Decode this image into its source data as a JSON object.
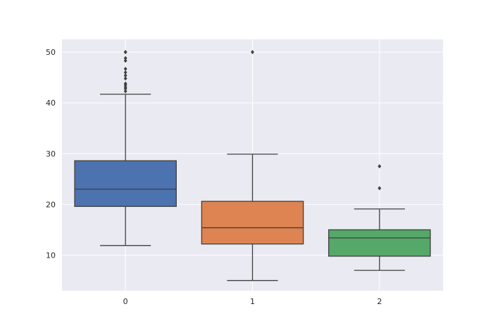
{
  "chart_data": {
    "type": "box",
    "title": "",
    "xlabel": "",
    "ylabel": "",
    "categories": [
      "0",
      "1",
      "2"
    ],
    "ylim": [
      3,
      52.5
    ],
    "yticks": [
      10,
      20,
      30,
      40,
      50
    ],
    "grid": true,
    "boxes": [
      {
        "category": "0",
        "color": "#4c72b0",
        "whisker_low": 11.9,
        "q1": 19.6,
        "median": 23.0,
        "q3": 28.6,
        "whisker_high": 41.7,
        "outliers": [
          42.3,
          42.8,
          43.1,
          43.5,
          43.8,
          44.8,
          45.4,
          46.0,
          46.7,
          48.3,
          48.8,
          50.0,
          50.0
        ]
      },
      {
        "category": "1",
        "color": "#dd8452",
        "whisker_low": 5.0,
        "q1": 12.2,
        "median": 15.4,
        "q3": 20.6,
        "whisker_high": 29.9,
        "outliers": [
          50.0
        ]
      },
      {
        "category": "2",
        "color": "#55a868",
        "whisker_low": 7.0,
        "q1": 9.8,
        "median": 13.4,
        "q3": 15.0,
        "whisker_high": 19.1,
        "outliers": [
          23.2,
          27.5
        ]
      }
    ]
  },
  "style": {
    "plot_bg": "#eaeaf2",
    "grid_color": "#ffffff",
    "line_color": "#3f3f3f"
  }
}
